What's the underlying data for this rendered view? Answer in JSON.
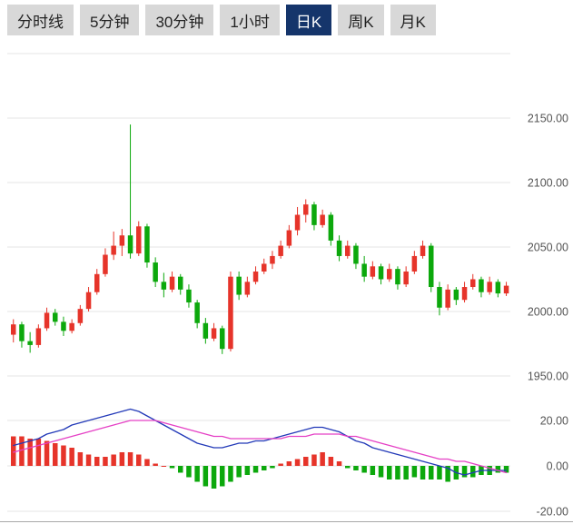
{
  "tabs": {
    "active_index": 4,
    "items": [
      {
        "label": "分时线"
      },
      {
        "label": "5分钟"
      },
      {
        "label": "30分钟"
      },
      {
        "label": "1小时"
      },
      {
        "label": "日K"
      },
      {
        "label": "周K"
      },
      {
        "label": "月K"
      }
    ]
  },
  "colors": {
    "up": "#e6342a",
    "down": "#0ca80c",
    "dif_line": "#2239b8",
    "dea_line": "#e540c5",
    "grid": "#e6e6e6",
    "axis_line": "#a8a8a8",
    "axis_text": "#555555",
    "tab_bg": "#d8d8d8",
    "tab_text": "#222222",
    "tab_active_bg": "#15356b",
    "tab_active_text": "#ffffff"
  },
  "chart_data": {
    "type": "candlestick+macd",
    "main": {
      "ylim": [
        1945,
        2200
      ],
      "y_axis": {
        "labels": [
          "2150.00",
          "2100.00",
          "2050.00",
          "2000.00",
          "1950.00"
        ],
        "values": [
          2150,
          2100,
          2050,
          2000,
          1950
        ]
      },
      "unlabeled_gridline_values": [
        2200
      ],
      "ohlc": [
        [
          1982,
          1994,
          1976,
          1990
        ],
        [
          1990,
          1992,
          1972,
          1977
        ],
        [
          1977,
          1984,
          1968,
          1974
        ],
        [
          1974,
          1990,
          1972,
          1987
        ],
        [
          1987,
          2003,
          1985,
          1999
        ],
        [
          1999,
          2002,
          1989,
          1992
        ],
        [
          1992,
          1996,
          1981,
          1985
        ],
        [
          1985,
          1994,
          1983,
          1991
        ],
        [
          1991,
          2005,
          1989,
          2002
        ],
        [
          2002,
          2019,
          2000,
          2015
        ],
        [
          2015,
          2033,
          2013,
          2029
        ],
        [
          2029,
          2049,
          2027,
          2044
        ],
        [
          2044,
          2062,
          2040,
          2051
        ],
        [
          2051,
          2064,
          2043,
          2059
        ],
        [
          2059,
          2145,
          2041,
          2045
        ],
        [
          2045,
          2070,
          2043,
          2066
        ],
        [
          2066,
          2068,
          2034,
          2038
        ],
        [
          2038,
          2042,
          2019,
          2023
        ],
        [
          2023,
          2030,
          2011,
          2017
        ],
        [
          2017,
          2031,
          2015,
          2027
        ],
        [
          2027,
          2029,
          2013,
          2017
        ],
        [
          2017,
          2021,
          2003,
          2007
        ],
        [
          2007,
          2009,
          1987,
          1991
        ],
        [
          1991,
          1995,
          1975,
          1979
        ],
        [
          1979,
          1991,
          1977,
          1987
        ],
        [
          1987,
          1989,
          1967,
          1971
        ],
        [
          1971,
          2031,
          1969,
          2027
        ],
        [
          2027,
          2031,
          2009,
          2013
        ],
        [
          2013,
          2027,
          2011,
          2023
        ],
        [
          2023,
          2035,
          2021,
          2031
        ],
        [
          2031,
          2041,
          2029,
          2037
        ],
        [
          2037,
          2047,
          2033,
          2043
        ],
        [
          2043,
          2055,
          2041,
          2051
        ],
        [
          2051,
          2067,
          2049,
          2063
        ],
        [
          2063,
          2081,
          2059,
          2075
        ],
        [
          2075,
          2087,
          2069,
          2083
        ],
        [
          2083,
          2085,
          2063,
          2067
        ],
        [
          2067,
          2079,
          2065,
          2075
        ],
        [
          2075,
          2077,
          2051,
          2055
        ],
        [
          2055,
          2059,
          2039,
          2043
        ],
        [
          2043,
          2055,
          2041,
          2051
        ],
        [
          2051,
          2053,
          2033,
          2037
        ],
        [
          2037,
          2043,
          2023,
          2027
        ],
        [
          2027,
          2039,
          2025,
          2035
        ],
        [
          2035,
          2037,
          2021,
          2025
        ],
        [
          2025,
          2037,
          2023,
          2033
        ],
        [
          2033,
          2035,
          2017,
          2021
        ],
        [
          2021,
          2035,
          2019,
          2031
        ],
        [
          2031,
          2047,
          2029,
          2043
        ],
        [
          2043,
          2055,
          2041,
          2051
        ],
        [
          2051,
          2053,
          2015,
          2019
        ],
        [
          2019,
          2023,
          1997,
          2003
        ],
        [
          2003,
          2021,
          2001,
          2017
        ],
        [
          2017,
          2019,
          2005,
          2009
        ],
        [
          2009,
          2023,
          2007,
          2019
        ],
        [
          2019,
          2029,
          2017,
          2025
        ],
        [
          2025,
          2027,
          2011,
          2015
        ],
        [
          2015,
          2027,
          2013,
          2023
        ],
        [
          2023,
          2025,
          2011,
          2014
        ],
        [
          2014,
          2023,
          2012,
          2020
        ]
      ]
    },
    "macd": {
      "y_axis": {
        "labels": [
          "20.00",
          "0.00",
          "-20.00"
        ],
        "values": [
          20,
          0,
          -20
        ]
      },
      "histogram": [
        13,
        13,
        12,
        12,
        11,
        10,
        9,
        8,
        6,
        5,
        4,
        4,
        5,
        6,
        6,
        5,
        3,
        1,
        0,
        -1,
        -3,
        -5,
        -7,
        -9,
        -10,
        -9,
        -7,
        -5,
        -4,
        -3,
        -2,
        -1,
        1,
        2,
        3,
        4,
        5,
        6,
        4,
        2,
        -1,
        -2,
        -3,
        -4,
        -5,
        -6,
        -6,
        -6,
        -5,
        -6,
        -6,
        -6,
        -7,
        -6,
        -5,
        -5,
        -4,
        -4,
        -3,
        -3
      ],
      "dif": [
        9,
        10,
        11,
        12,
        14,
        15,
        16,
        18,
        19,
        20,
        21,
        22,
        23,
        24,
        25,
        24,
        22,
        20,
        18,
        16,
        14,
        12,
        10,
        9,
        8,
        8,
        9,
        10,
        10,
        11,
        11,
        12,
        13,
        14,
        15,
        16,
        17,
        17,
        16,
        15,
        13,
        11,
        10,
        8,
        7,
        6,
        5,
        4,
        3,
        2,
        1,
        0,
        -1,
        -3,
        -4,
        -3,
        -2,
        -2,
        -2,
        -2
      ],
      "dea": [
        6,
        7,
        8,
        9,
        10,
        11,
        12,
        13,
        14,
        15,
        16,
        17,
        18,
        19,
        20,
        20,
        20,
        20,
        19,
        18,
        17,
        16,
        15,
        14,
        13,
        13,
        12,
        12,
        12,
        12,
        12,
        12,
        12,
        13,
        13,
        13,
        14,
        14,
        14,
        14,
        13,
        13,
        12,
        11,
        10,
        9,
        8,
        7,
        6,
        5,
        4,
        3,
        3,
        2,
        2,
        1,
        0,
        -1,
        -2,
        -3
      ]
    }
  }
}
